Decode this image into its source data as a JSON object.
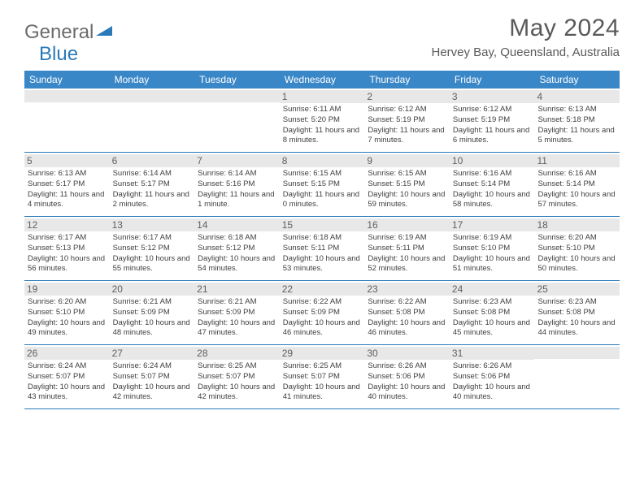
{
  "logo": {
    "general": "General",
    "blue": "Blue"
  },
  "title": "May 2024",
  "location": "Hervey Bay, Queensland, Australia",
  "colors": {
    "header_bg": "#3a87c8",
    "border": "#2a7ab9",
    "daynum_bg": "#e8e8e8",
    "text_dark": "#404040",
    "text_med": "#5a5a5a"
  },
  "weekdays": [
    "Sunday",
    "Monday",
    "Tuesday",
    "Wednesday",
    "Thursday",
    "Friday",
    "Saturday"
  ],
  "weeks": [
    [
      {
        "n": "",
        "sr": "",
        "ss": "",
        "dl": ""
      },
      {
        "n": "",
        "sr": "",
        "ss": "",
        "dl": ""
      },
      {
        "n": "",
        "sr": "",
        "ss": "",
        "dl": ""
      },
      {
        "n": "1",
        "sr": "6:11 AM",
        "ss": "5:20 PM",
        "dl": "11 hours and 8 minutes."
      },
      {
        "n": "2",
        "sr": "6:12 AM",
        "ss": "5:19 PM",
        "dl": "11 hours and 7 minutes."
      },
      {
        "n": "3",
        "sr": "6:12 AM",
        "ss": "5:19 PM",
        "dl": "11 hours and 6 minutes."
      },
      {
        "n": "4",
        "sr": "6:13 AM",
        "ss": "5:18 PM",
        "dl": "11 hours and 5 minutes."
      }
    ],
    [
      {
        "n": "5",
        "sr": "6:13 AM",
        "ss": "5:17 PM",
        "dl": "11 hours and 4 minutes."
      },
      {
        "n": "6",
        "sr": "6:14 AM",
        "ss": "5:17 PM",
        "dl": "11 hours and 2 minutes."
      },
      {
        "n": "7",
        "sr": "6:14 AM",
        "ss": "5:16 PM",
        "dl": "11 hours and 1 minute."
      },
      {
        "n": "8",
        "sr": "6:15 AM",
        "ss": "5:15 PM",
        "dl": "11 hours and 0 minutes."
      },
      {
        "n": "9",
        "sr": "6:15 AM",
        "ss": "5:15 PM",
        "dl": "10 hours and 59 minutes."
      },
      {
        "n": "10",
        "sr": "6:16 AM",
        "ss": "5:14 PM",
        "dl": "10 hours and 58 minutes."
      },
      {
        "n": "11",
        "sr": "6:16 AM",
        "ss": "5:14 PM",
        "dl": "10 hours and 57 minutes."
      }
    ],
    [
      {
        "n": "12",
        "sr": "6:17 AM",
        "ss": "5:13 PM",
        "dl": "10 hours and 56 minutes."
      },
      {
        "n": "13",
        "sr": "6:17 AM",
        "ss": "5:12 PM",
        "dl": "10 hours and 55 minutes."
      },
      {
        "n": "14",
        "sr": "6:18 AM",
        "ss": "5:12 PM",
        "dl": "10 hours and 54 minutes."
      },
      {
        "n": "15",
        "sr": "6:18 AM",
        "ss": "5:11 PM",
        "dl": "10 hours and 53 minutes."
      },
      {
        "n": "16",
        "sr": "6:19 AM",
        "ss": "5:11 PM",
        "dl": "10 hours and 52 minutes."
      },
      {
        "n": "17",
        "sr": "6:19 AM",
        "ss": "5:10 PM",
        "dl": "10 hours and 51 minutes."
      },
      {
        "n": "18",
        "sr": "6:20 AM",
        "ss": "5:10 PM",
        "dl": "10 hours and 50 minutes."
      }
    ],
    [
      {
        "n": "19",
        "sr": "6:20 AM",
        "ss": "5:10 PM",
        "dl": "10 hours and 49 minutes."
      },
      {
        "n": "20",
        "sr": "6:21 AM",
        "ss": "5:09 PM",
        "dl": "10 hours and 48 minutes."
      },
      {
        "n": "21",
        "sr": "6:21 AM",
        "ss": "5:09 PM",
        "dl": "10 hours and 47 minutes."
      },
      {
        "n": "22",
        "sr": "6:22 AM",
        "ss": "5:09 PM",
        "dl": "10 hours and 46 minutes."
      },
      {
        "n": "23",
        "sr": "6:22 AM",
        "ss": "5:08 PM",
        "dl": "10 hours and 46 minutes."
      },
      {
        "n": "24",
        "sr": "6:23 AM",
        "ss": "5:08 PM",
        "dl": "10 hours and 45 minutes."
      },
      {
        "n": "25",
        "sr": "6:23 AM",
        "ss": "5:08 PM",
        "dl": "10 hours and 44 minutes."
      }
    ],
    [
      {
        "n": "26",
        "sr": "6:24 AM",
        "ss": "5:07 PM",
        "dl": "10 hours and 43 minutes."
      },
      {
        "n": "27",
        "sr": "6:24 AM",
        "ss": "5:07 PM",
        "dl": "10 hours and 42 minutes."
      },
      {
        "n": "28",
        "sr": "6:25 AM",
        "ss": "5:07 PM",
        "dl": "10 hours and 42 minutes."
      },
      {
        "n": "29",
        "sr": "6:25 AM",
        "ss": "5:07 PM",
        "dl": "10 hours and 41 minutes."
      },
      {
        "n": "30",
        "sr": "6:26 AM",
        "ss": "5:06 PM",
        "dl": "10 hours and 40 minutes."
      },
      {
        "n": "31",
        "sr": "6:26 AM",
        "ss": "5:06 PM",
        "dl": "10 hours and 40 minutes."
      },
      {
        "n": "",
        "sr": "",
        "ss": "",
        "dl": ""
      }
    ]
  ],
  "labels": {
    "sunrise": "Sunrise:",
    "sunset": "Sunset:",
    "daylight": "Daylight:"
  }
}
